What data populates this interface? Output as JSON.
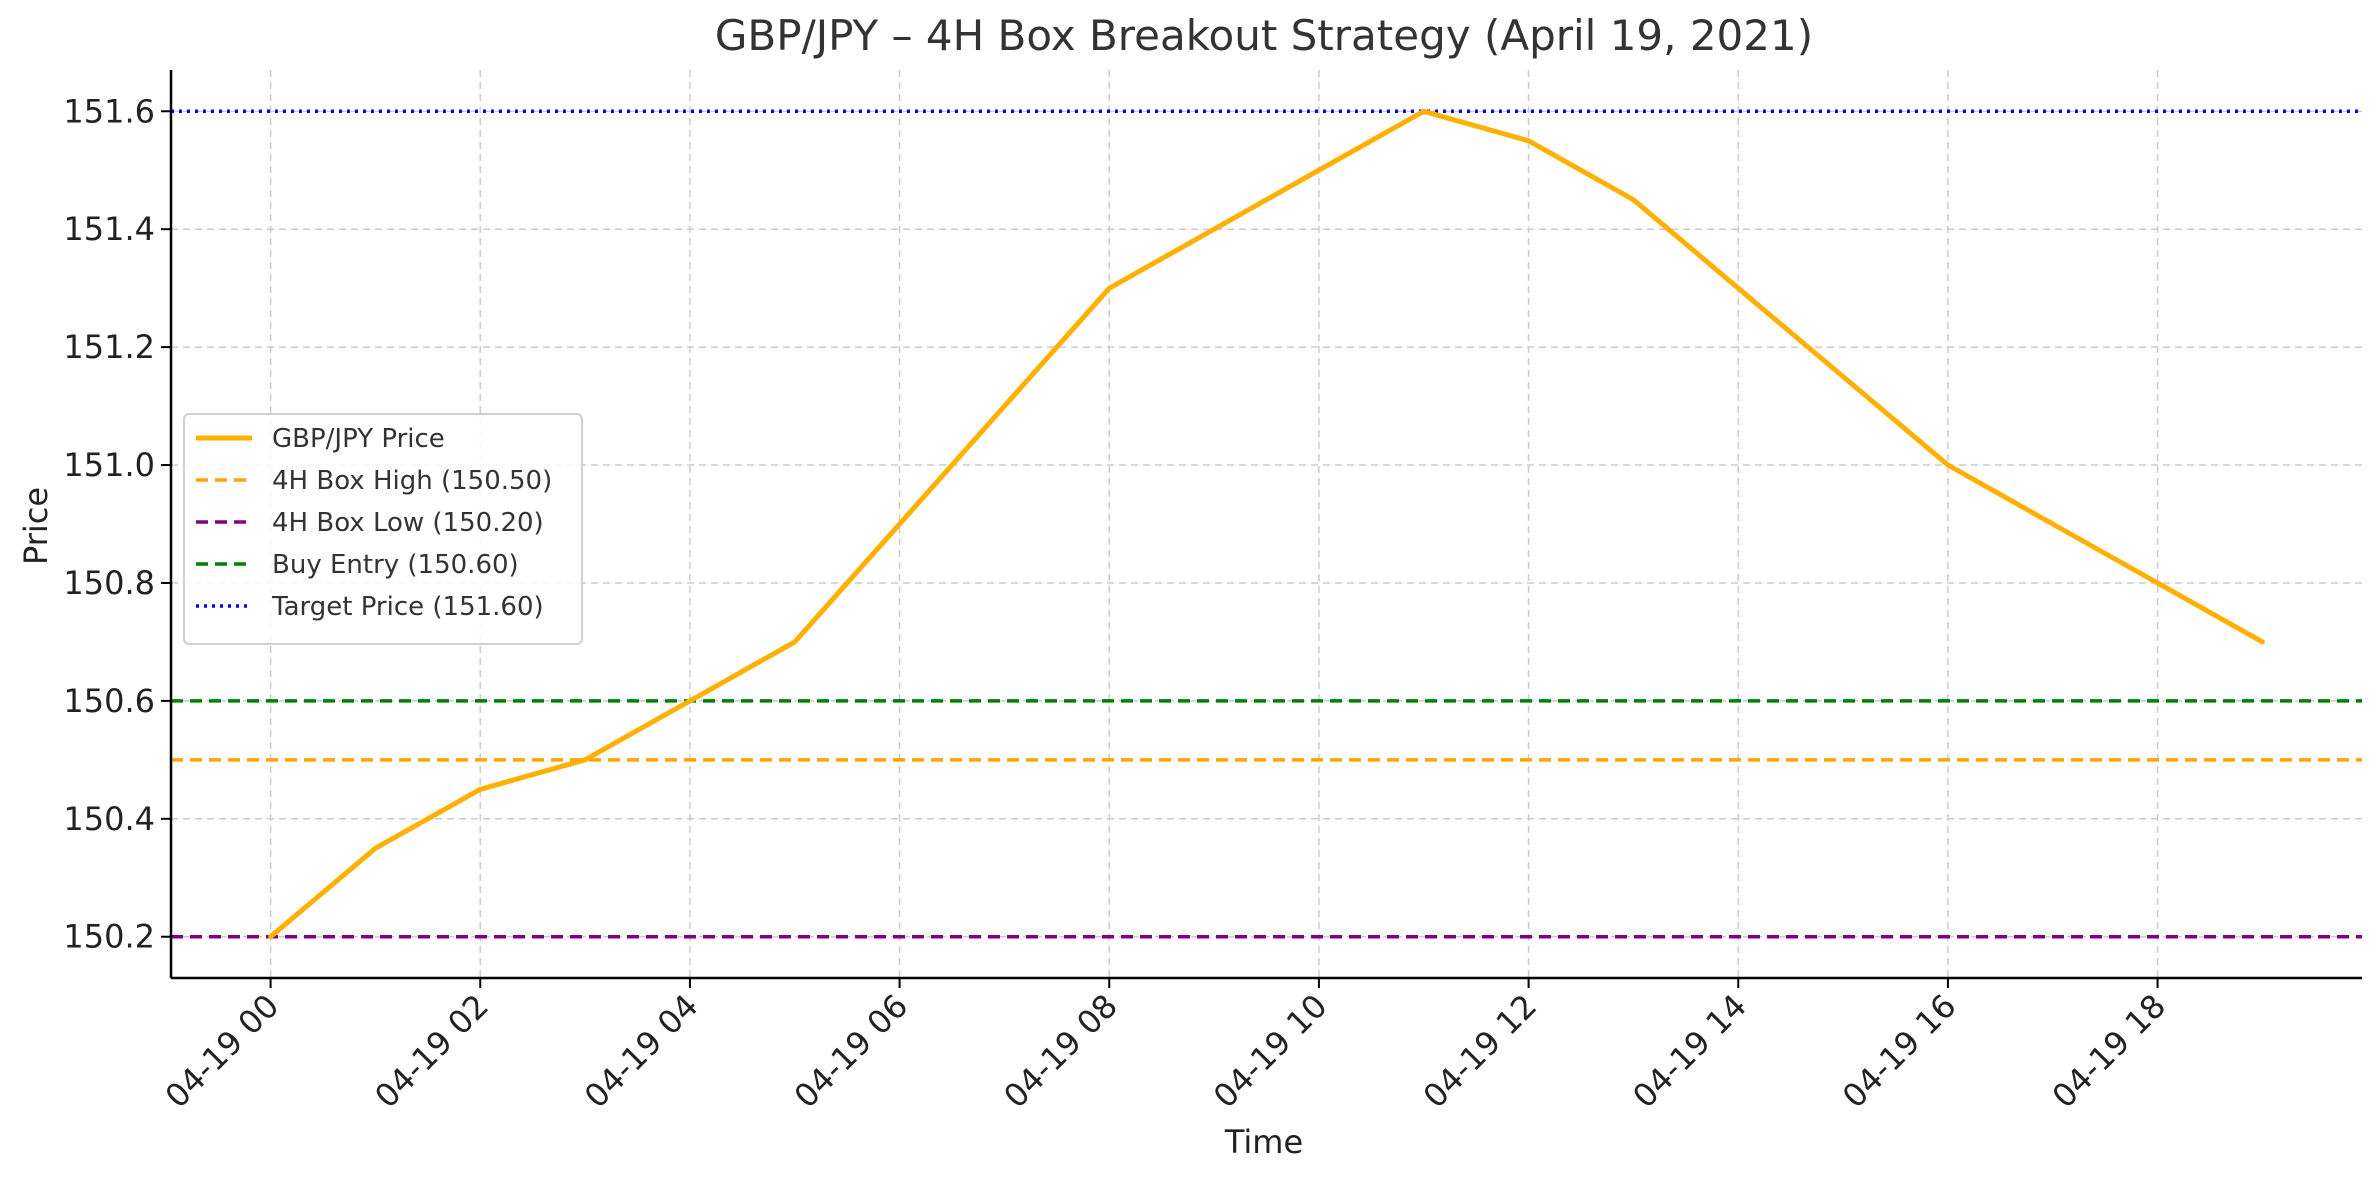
{
  "chart_data": {
    "type": "line",
    "title": "GBP/JPY – 4H Box Breakout Strategy (April 19, 2021)",
    "xlabel": "Time",
    "ylabel": "Price",
    "x_tick_labels": [
      "04-19 00",
      "04-19 02",
      "04-19 04",
      "04-19 06",
      "04-19 08",
      "04-19 10",
      "04-19 12",
      "04-19 14",
      "04-19 16",
      "04-19 18"
    ],
    "x_tick_hours": [
      0,
      2,
      4,
      6,
      8,
      10,
      12,
      14,
      16,
      18
    ],
    "y_tick_labels": [
      "150.2",
      "150.4",
      "150.6",
      "150.8",
      "151.0",
      "151.2",
      "151.4",
      "151.6"
    ],
    "y_tick_values": [
      150.2,
      150.4,
      150.6,
      150.8,
      151.0,
      151.2,
      151.4,
      151.6
    ],
    "xlim_hours": [
      -0.95,
      19.95
    ],
    "ylim": [
      150.13,
      151.67
    ],
    "grid": true,
    "legend_position": "center-left",
    "series": [
      {
        "name": "GBP/JPY Price",
        "style": "solid",
        "color": "#FFB000",
        "x_hours": [
          0,
          1,
          2,
          3,
          4,
          5,
          6,
          7,
          8,
          9,
          10,
          11,
          12,
          13,
          14,
          15,
          16,
          17,
          18,
          19
        ],
        "values": [
          150.2,
          150.35,
          150.45,
          150.5,
          150.6,
          150.7,
          150.9,
          151.1,
          151.3,
          151.4,
          151.5,
          151.6,
          151.55,
          151.45,
          151.3,
          151.15,
          151.0,
          150.9,
          150.8,
          150.7
        ]
      }
    ],
    "reference_lines": [
      {
        "name": "4H Box High (150.50)",
        "value": 150.5,
        "style": "dashed",
        "color": "#FFA500"
      },
      {
        "name": "4H Box Low (150.20)",
        "value": 150.2,
        "style": "dashed",
        "color": "#800080"
      },
      {
        "name": "Buy Entry (150.60)",
        "value": 150.6,
        "style": "dashed",
        "color": "#008000"
      },
      {
        "name": "Target Price (151.60)",
        "value": 151.6,
        "style": "dotted",
        "color": "#0000FF"
      }
    ]
  }
}
